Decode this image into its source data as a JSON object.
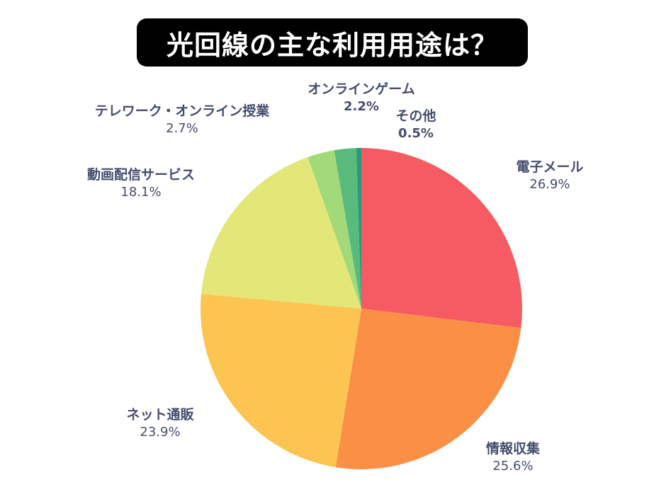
{
  "title": "光回線の主な利用用途は？",
  "chart_data": {
    "type": "pie",
    "title": "光回線の主な利用用途は？",
    "start_angle": "12 o'clock",
    "direction": "clockwise",
    "categories": [
      "電子メール",
      "情報収集",
      "ネット通販",
      "動画配信サービス",
      "テレワーク・オンライン授業",
      "オンラインゲーム",
      "その他"
    ],
    "values": [
      26.9,
      25.6,
      23.9,
      18.1,
      2.7,
      2.2,
      0.5
    ],
    "unit": "%",
    "colors": [
      "#f65b64",
      "#fb8f45",
      "#fcc551",
      "#e2e778",
      "#a2da7a",
      "#58bb7b",
      "#279a7e"
    ],
    "legend": "none (labels placed outside slices)"
  },
  "labels": [
    {
      "name": "電子メール",
      "pct": "26.9%"
    },
    {
      "name": "情報収集",
      "pct": "25.6%"
    },
    {
      "name": "ネット通販",
      "pct": "23.9%"
    },
    {
      "name": "動画配信サービス",
      "pct": "18.1%"
    },
    {
      "name": "テレワーク・オンライン授業",
      "pct": "2.7%"
    },
    {
      "name": "オンラインゲーム",
      "pct": "2.2%"
    },
    {
      "name": "その他",
      "pct": "0.5%"
    }
  ]
}
